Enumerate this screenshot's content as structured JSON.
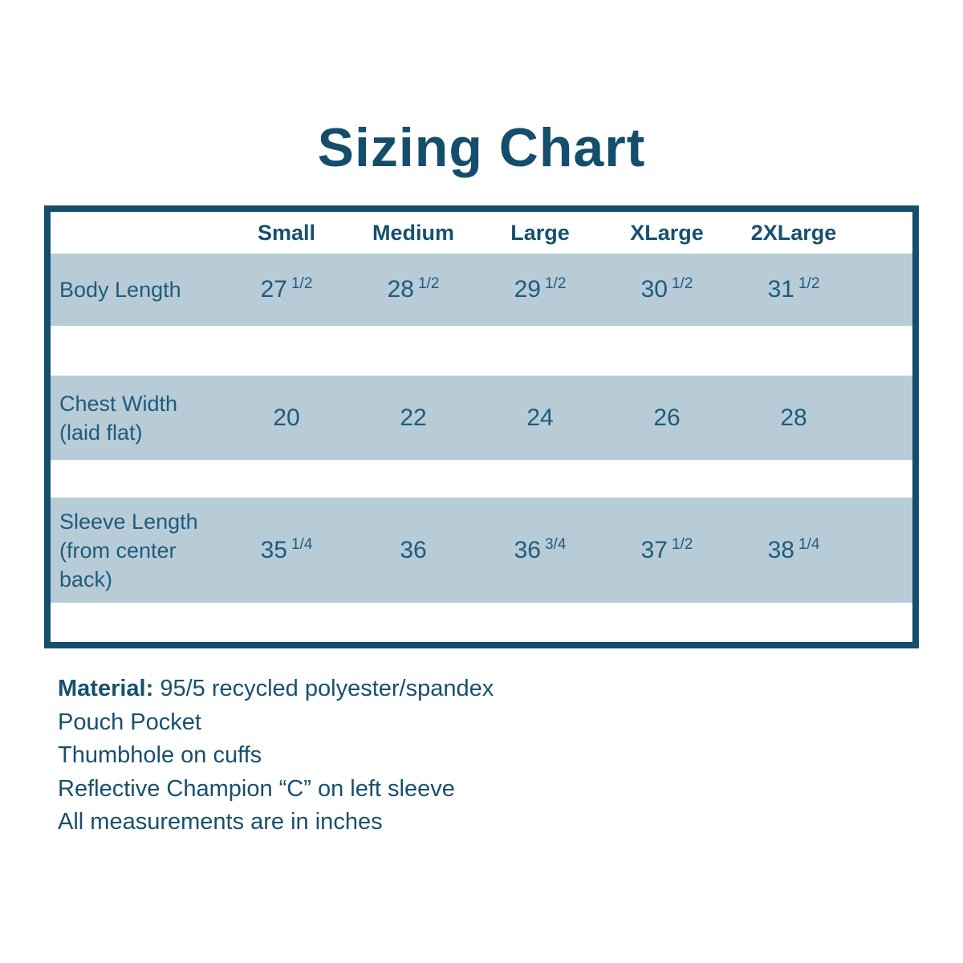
{
  "chart_data": {
    "type": "table",
    "title": "Sizing Chart",
    "columns": [
      "",
      "Small",
      "Medium",
      "Large",
      "XLarge",
      "2XLarge"
    ],
    "rows": [
      [
        "Body Length",
        "27 1/2",
        "28 1/2",
        "29 1/2",
        "30 1/2",
        "31 1/2"
      ],
      [
        "Chest Width (laid flat)",
        "20",
        "22",
        "24",
        "26",
        "28"
      ],
      [
        "Sleeve Length (from center back)",
        "35 1/4",
        "36",
        "36 3/4",
        "37 1/2",
        "38 1/4"
      ]
    ],
    "units_note": "All measurements are in inches"
  },
  "footer": {
    "material_label": "Material:",
    "material_value": " 95/5 recycled polyester/spandex",
    "notes": [
      "Pouch Pocket",
      "Thumbhole on cuffs",
      "Reflective Champion “C” on left sleeve",
      "All measurements are in inches"
    ]
  },
  "colors": {
    "accent_dark": "#154e6d",
    "table_text": "#1e5b7d",
    "row_background": "#b7ccd7",
    "background": "#ffffff"
  }
}
